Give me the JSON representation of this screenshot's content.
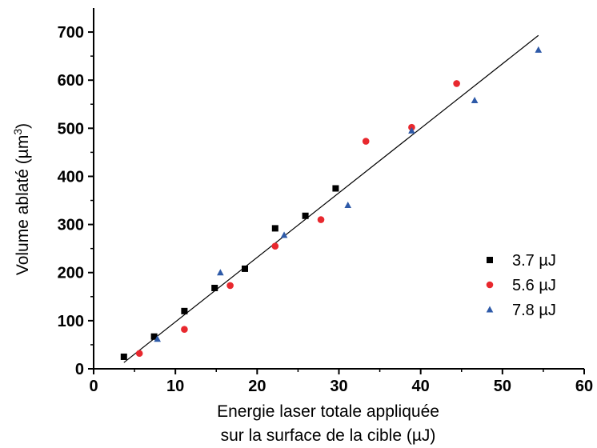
{
  "chart_data": {
    "type": "scatter",
    "xlabel_line1": "Energie laser totale appliquée",
    "xlabel_line2": "sur la surface de la cible (µJ)",
    "ylabel_main": "Volume ablaté (µm",
    "ylabel_sup": "3",
    "ylabel_end": ")",
    "xlim": [
      0,
      60
    ],
    "ylim": [
      0,
      750
    ],
    "x_ticks": [
      "0",
      "10",
      "20",
      "30",
      "40",
      "50",
      "60"
    ],
    "y_ticks": [
      "0",
      "100",
      "200",
      "300",
      "400",
      "500",
      "600",
      "700"
    ],
    "grid": false,
    "legend_position": "bottom-right",
    "series": [
      {
        "name": "3.7 µJ",
        "marker": "square",
        "color": "#000000",
        "points": [
          [
            3.7,
            25
          ],
          [
            7.4,
            67
          ],
          [
            11.1,
            120
          ],
          [
            14.8,
            168
          ],
          [
            18.5,
            208
          ],
          [
            22.2,
            292
          ],
          [
            25.9,
            318
          ],
          [
            29.6,
            375
          ]
        ]
      },
      {
        "name": "5.6 µJ",
        "marker": "circle",
        "color": "#e8282e",
        "points": [
          [
            5.6,
            32
          ],
          [
            11.1,
            82
          ],
          [
            16.7,
            173
          ],
          [
            22.2,
            255
          ],
          [
            27.8,
            310
          ],
          [
            33.3,
            473
          ],
          [
            38.9,
            502
          ],
          [
            44.4,
            593
          ]
        ]
      },
      {
        "name": "7.8 µJ",
        "marker": "triangle",
        "color": "#2e5aa8",
        "points": [
          [
            7.8,
            62
          ],
          [
            15.5,
            200
          ],
          [
            23.3,
            278
          ],
          [
            31.1,
            340
          ],
          [
            38.9,
            495
          ],
          [
            46.6,
            558
          ],
          [
            54.4,
            663
          ]
        ]
      }
    ],
    "fit_line": {
      "from": [
        3.7,
        13
      ],
      "to": [
        54.4,
        693
      ],
      "color": "#000000"
    }
  }
}
